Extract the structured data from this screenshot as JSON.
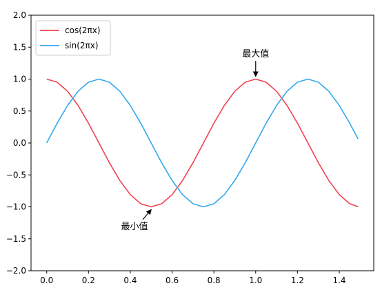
{
  "chart_data": {
    "type": "line",
    "xlim": [
      -0.075,
      1.565
    ],
    "ylim": [
      -2.0,
      2.0
    ],
    "x_ticks": [
      0.0,
      0.2,
      0.4,
      0.6,
      0.8,
      1.0,
      1.2,
      1.4
    ],
    "x_tick_labels": [
      "0.0",
      "0.2",
      "0.4",
      "0.6",
      "0.8",
      "1.0",
      "1.2",
      "1.4"
    ],
    "y_ticks": [
      -2.0,
      -1.5,
      -1.0,
      -0.5,
      0.0,
      0.5,
      1.0,
      1.5,
      2.0
    ],
    "y_tick_labels": [
      "−2.0",
      "−1.5",
      "−1.0",
      "−0.5",
      "0.0",
      "0.5",
      "1.0",
      "1.5",
      "2.0"
    ],
    "grid": false,
    "legend_position": "top-left",
    "series": [
      {
        "name": "cos(2πx)",
        "color": "#f0424f",
        "x": [
          0.0,
          0.05,
          0.1,
          0.15,
          0.2,
          0.25,
          0.3,
          0.35,
          0.4,
          0.45,
          0.5,
          0.55,
          0.6,
          0.65,
          0.7,
          0.75,
          0.8,
          0.85,
          0.9,
          0.95,
          1.0,
          1.05,
          1.1,
          1.15,
          1.2,
          1.25,
          1.3,
          1.35,
          1.4,
          1.45,
          1.49
        ],
        "y": [
          1.0,
          0.951,
          0.809,
          0.588,
          0.309,
          0.0,
          -0.309,
          -0.588,
          -0.809,
          -0.951,
          -1.0,
          -0.951,
          -0.809,
          -0.588,
          -0.309,
          0.0,
          0.309,
          0.588,
          0.809,
          0.951,
          1.0,
          0.951,
          0.809,
          0.588,
          0.309,
          0.0,
          -0.309,
          -0.588,
          -0.809,
          -0.951,
          -0.998
        ]
      },
      {
        "name": "sin(2πx)",
        "color": "#31a8f0",
        "x": [
          0.0,
          0.05,
          0.1,
          0.15,
          0.2,
          0.25,
          0.3,
          0.35,
          0.4,
          0.45,
          0.5,
          0.55,
          0.6,
          0.65,
          0.7,
          0.75,
          0.8,
          0.85,
          0.9,
          0.95,
          1.0,
          1.05,
          1.1,
          1.15,
          1.2,
          1.25,
          1.3,
          1.35,
          1.4,
          1.45,
          1.49
        ],
        "y": [
          0.0,
          0.309,
          0.588,
          0.809,
          0.951,
          1.0,
          0.951,
          0.809,
          0.588,
          0.309,
          0.0,
          -0.309,
          -0.588,
          -0.809,
          -0.951,
          -1.0,
          -0.951,
          -0.809,
          -0.588,
          -0.309,
          0.0,
          0.309,
          0.588,
          0.809,
          0.951,
          1.0,
          0.951,
          0.809,
          0.588,
          0.309,
          0.063
        ]
      }
    ],
    "annotations": [
      {
        "text": "最大值",
        "point": [
          1.0,
          1.0
        ],
        "text_pos": [
          1.0,
          1.35
        ]
      },
      {
        "text": "最小值",
        "point": [
          0.5,
          -1.0
        ],
        "text_pos": [
          0.42,
          -1.35
        ]
      }
    ]
  }
}
